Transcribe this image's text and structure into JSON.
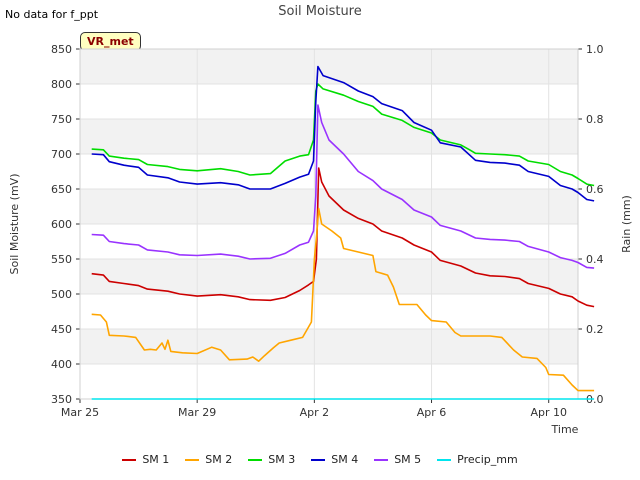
{
  "header": {
    "no_data_note": "No data for f_ppt",
    "site_label": "VR_met"
  },
  "chart_data": {
    "type": "line",
    "title": "Soil Moisture",
    "xlabel": "Time",
    "ylabel": "Soil Moisture (mV)",
    "y2label": "Rain (mm)",
    "xlim": [
      0,
      17
    ],
    "ylim": [
      350,
      850
    ],
    "y2lim": [
      0.0,
      1.0
    ],
    "x_unit": "days since Mar 25",
    "x_ticks": [
      {
        "x": 0,
        "label": "Mar 25"
      },
      {
        "x": 4,
        "label": "Mar 29"
      },
      {
        "x": 8,
        "label": "Apr 2"
      },
      {
        "x": 12,
        "label": "Apr 6"
      },
      {
        "x": 16,
        "label": "Apr 10"
      }
    ],
    "y_ticks": [
      350,
      400,
      450,
      500,
      550,
      600,
      650,
      700,
      750,
      800,
      850
    ],
    "y2_ticks": [
      "0.0",
      "0.2",
      "0.4",
      "0.6",
      "0.8",
      "1.0"
    ],
    "grid": true,
    "legend_position": "bottom",
    "series": [
      {
        "name": "SM 1",
        "color": "#cc0000",
        "axis": "left",
        "points": [
          [
            0.4,
            529
          ],
          [
            0.8,
            527
          ],
          [
            1.0,
            518
          ],
          [
            1.5,
            515
          ],
          [
            2.0,
            512
          ],
          [
            2.3,
            507
          ],
          [
            3.0,
            504
          ],
          [
            3.4,
            500
          ],
          [
            4.0,
            497
          ],
          [
            4.8,
            499
          ],
          [
            5.4,
            496
          ],
          [
            5.8,
            492
          ],
          [
            6.5,
            491
          ],
          [
            7.0,
            495
          ],
          [
            7.5,
            505
          ],
          [
            7.8,
            513
          ],
          [
            7.97,
            518
          ],
          [
            8.07,
            550
          ],
          [
            8.15,
            680
          ],
          [
            8.25,
            660
          ],
          [
            8.5,
            640
          ],
          [
            9.0,
            620
          ],
          [
            9.5,
            608
          ],
          [
            10.0,
            600
          ],
          [
            10.3,
            590
          ],
          [
            11.0,
            580
          ],
          [
            11.4,
            570
          ],
          [
            12.0,
            560
          ],
          [
            12.3,
            548
          ],
          [
            13.0,
            540
          ],
          [
            13.5,
            530
          ],
          [
            14.0,
            526
          ],
          [
            14.5,
            525
          ],
          [
            15.0,
            522
          ],
          [
            15.3,
            515
          ],
          [
            16.0,
            508
          ],
          [
            16.4,
            500
          ],
          [
            16.8,
            496
          ],
          [
            17.0,
            490
          ],
          [
            17.3,
            484
          ],
          [
            17.55,
            482
          ]
        ]
      },
      {
        "name": "SM 2",
        "color": "#ffa500",
        "axis": "left",
        "points": [
          [
            0.4,
            471
          ],
          [
            0.7,
            470
          ],
          [
            0.9,
            460
          ],
          [
            1.0,
            441
          ],
          [
            1.5,
            440
          ],
          [
            1.9,
            438
          ],
          [
            2.2,
            420
          ],
          [
            2.4,
            421
          ],
          [
            2.6,
            420
          ],
          [
            2.8,
            430
          ],
          [
            2.9,
            421
          ],
          [
            3.0,
            434
          ],
          [
            3.1,
            418
          ],
          [
            3.5,
            416
          ],
          [
            4.0,
            415
          ],
          [
            4.5,
            424
          ],
          [
            4.8,
            420
          ],
          [
            5.1,
            406
          ],
          [
            5.7,
            407
          ],
          [
            5.9,
            410
          ],
          [
            6.1,
            404
          ],
          [
            6.3,
            412
          ],
          [
            6.6,
            423
          ],
          [
            6.8,
            430
          ],
          [
            7.2,
            434
          ],
          [
            7.6,
            438
          ],
          [
            7.9,
            460
          ],
          [
            8.0,
            550
          ],
          [
            8.08,
            585
          ],
          [
            8.15,
            622
          ],
          [
            8.25,
            600
          ],
          [
            8.6,
            590
          ],
          [
            8.9,
            580
          ],
          [
            9.0,
            565
          ],
          [
            9.5,
            560
          ],
          [
            10.0,
            555
          ],
          [
            10.1,
            532
          ],
          [
            10.5,
            527
          ],
          [
            10.7,
            510
          ],
          [
            10.9,
            485
          ],
          [
            11.5,
            485
          ],
          [
            11.8,
            470
          ],
          [
            12.0,
            462
          ],
          [
            12.5,
            460
          ],
          [
            12.8,
            445
          ],
          [
            13.0,
            440
          ],
          [
            14.0,
            440
          ],
          [
            14.4,
            438
          ],
          [
            14.8,
            420
          ],
          [
            15.1,
            410
          ],
          [
            15.6,
            408
          ],
          [
            15.9,
            395
          ],
          [
            16.0,
            385
          ],
          [
            16.5,
            384
          ],
          [
            16.8,
            370
          ],
          [
            17.0,
            362
          ],
          [
            17.55,
            362
          ]
        ]
      },
      {
        "name": "SM 3",
        "color": "#00dd00",
        "axis": "left",
        "points": [
          [
            0.4,
            707
          ],
          [
            0.8,
            706
          ],
          [
            1.0,
            697
          ],
          [
            1.5,
            694
          ],
          [
            2.0,
            692
          ],
          [
            2.3,
            685
          ],
          [
            3.0,
            682
          ],
          [
            3.4,
            678
          ],
          [
            4.0,
            676
          ],
          [
            4.8,
            679
          ],
          [
            5.4,
            675
          ],
          [
            5.8,
            670
          ],
          [
            6.5,
            672
          ],
          [
            7.0,
            690
          ],
          [
            7.5,
            697
          ],
          [
            7.8,
            699
          ],
          [
            7.97,
            720
          ],
          [
            8.05,
            790
          ],
          [
            8.12,
            800
          ],
          [
            8.3,
            793
          ],
          [
            9.0,
            784
          ],
          [
            9.5,
            775
          ],
          [
            10.0,
            768
          ],
          [
            10.3,
            757
          ],
          [
            11.0,
            748
          ],
          [
            11.4,
            738
          ],
          [
            12.0,
            730
          ],
          [
            12.3,
            720
          ],
          [
            13.0,
            713
          ],
          [
            13.3,
            706
          ],
          [
            13.5,
            701
          ],
          [
            14.0,
            700
          ],
          [
            14.5,
            699
          ],
          [
            15.0,
            697
          ],
          [
            15.3,
            690
          ],
          [
            16.0,
            685
          ],
          [
            16.4,
            675
          ],
          [
            16.8,
            670
          ],
          [
            17.0,
            665
          ],
          [
            17.3,
            657
          ],
          [
            17.55,
            655
          ]
        ]
      },
      {
        "name": "SM 4",
        "color": "#0000cc",
        "axis": "left",
        "points": [
          [
            0.4,
            700
          ],
          [
            0.8,
            699
          ],
          [
            1.0,
            689
          ],
          [
            1.5,
            684
          ],
          [
            2.0,
            681
          ],
          [
            2.3,
            670
          ],
          [
            3.0,
            666
          ],
          [
            3.4,
            660
          ],
          [
            4.0,
            657
          ],
          [
            4.8,
            659
          ],
          [
            5.4,
            656
          ],
          [
            5.8,
            650
          ],
          [
            6.5,
            650
          ],
          [
            7.0,
            658
          ],
          [
            7.5,
            667
          ],
          [
            7.8,
            671
          ],
          [
            7.97,
            690
          ],
          [
            8.05,
            775
          ],
          [
            8.12,
            825
          ],
          [
            8.3,
            812
          ],
          [
            9.0,
            802
          ],
          [
            9.5,
            790
          ],
          [
            10.0,
            782
          ],
          [
            10.3,
            772
          ],
          [
            11.0,
            762
          ],
          [
            11.4,
            745
          ],
          [
            12.0,
            734
          ],
          [
            12.3,
            716
          ],
          [
            13.0,
            710
          ],
          [
            13.5,
            691
          ],
          [
            14.0,
            688
          ],
          [
            14.5,
            687
          ],
          [
            15.0,
            684
          ],
          [
            15.3,
            675
          ],
          [
            16.0,
            668
          ],
          [
            16.4,
            655
          ],
          [
            16.8,
            650
          ],
          [
            17.0,
            645
          ],
          [
            17.3,
            635
          ],
          [
            17.55,
            633
          ]
        ]
      },
      {
        "name": "SM 5",
        "color": "#9933ff",
        "axis": "left",
        "points": [
          [
            0.4,
            585
          ],
          [
            0.8,
            584
          ],
          [
            1.0,
            575
          ],
          [
            1.5,
            572
          ],
          [
            2.0,
            570
          ],
          [
            2.3,
            563
          ],
          [
            3.0,
            560
          ],
          [
            3.4,
            556
          ],
          [
            4.0,
            555
          ],
          [
            4.8,
            557
          ],
          [
            5.4,
            554
          ],
          [
            5.8,
            550
          ],
          [
            6.5,
            551
          ],
          [
            7.0,
            558
          ],
          [
            7.5,
            570
          ],
          [
            7.8,
            574
          ],
          [
            7.97,
            590
          ],
          [
            8.05,
            640
          ],
          [
            8.12,
            770
          ],
          [
            8.25,
            745
          ],
          [
            8.5,
            720
          ],
          [
            9.0,
            700
          ],
          [
            9.5,
            675
          ],
          [
            10.0,
            662
          ],
          [
            10.3,
            650
          ],
          [
            11.0,
            635
          ],
          [
            11.4,
            620
          ],
          [
            12.0,
            610
          ],
          [
            12.3,
            598
          ],
          [
            13.0,
            590
          ],
          [
            13.5,
            580
          ],
          [
            14.0,
            578
          ],
          [
            14.5,
            577
          ],
          [
            15.0,
            575
          ],
          [
            15.3,
            568
          ],
          [
            16.0,
            560
          ],
          [
            16.4,
            552
          ],
          [
            16.8,
            548
          ],
          [
            17.0,
            545
          ],
          [
            17.3,
            538
          ],
          [
            17.55,
            537
          ]
        ]
      },
      {
        "name": "Precip_mm",
        "color": "#00e5ee",
        "axis": "right",
        "points": [
          [
            0.4,
            0.0
          ],
          [
            17.55,
            0.0
          ]
        ]
      }
    ]
  }
}
